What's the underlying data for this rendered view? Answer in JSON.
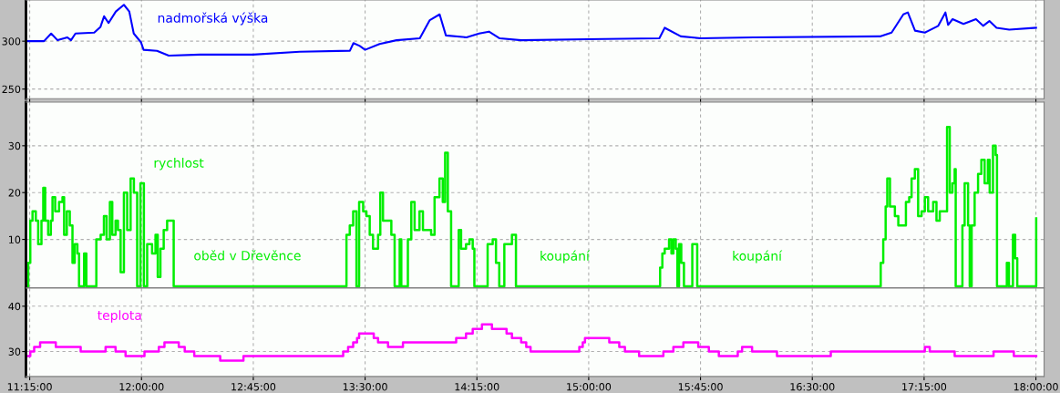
{
  "chart_data": [
    {
      "type": "line",
      "xlim": [
        11.225,
        18.055
      ],
      "ylim": [
        240,
        343
      ],
      "yticks": [
        250,
        300
      ],
      "grid": true,
      "tick_labels": "y",
      "xticks": [
        {
          "value": 11.25,
          "label": null
        },
        {
          "value": 12.0,
          "label": null
        },
        {
          "value": 12.75,
          "label": null
        },
        {
          "value": 13.5,
          "label": null
        },
        {
          "value": 14.25,
          "label": null
        },
        {
          "value": 15.0,
          "label": null
        },
        {
          "value": 15.75,
          "label": null
        },
        {
          "value": 16.5,
          "label": null
        },
        {
          "value": 17.25,
          "label": null
        },
        {
          "value": 18.0,
          "label": null
        }
      ],
      "series": [
        {
          "name": "nadmořská výška",
          "color": "#0000ff",
          "x": [
            11.226,
            11.346,
            11.394,
            11.437,
            11.503,
            11.527,
            11.557,
            11.683,
            11.725,
            11.749,
            11.779,
            11.828,
            11.882,
            11.918,
            11.948,
            11.996,
            12.014,
            12.104,
            12.183,
            12.393,
            12.748,
            13.061,
            13.398,
            13.422,
            13.464,
            13.5,
            13.597,
            13.711,
            13.867,
            13.934,
            14.0,
            14.042,
            14.18,
            14.265,
            14.331,
            14.403,
            14.547,
            14.992,
            15.474,
            15.51,
            15.618,
            15.751,
            16.106,
            16.954,
            17.032,
            17.111,
            17.141,
            17.189,
            17.255,
            17.345,
            17.393,
            17.411,
            17.441,
            17.514,
            17.598,
            17.646,
            17.688,
            17.736,
            17.821,
            18.001
          ],
          "values": [
            300,
            300,
            308,
            301,
            304,
            301,
            308,
            309,
            315,
            326,
            319,
            331,
            338,
            331,
            308,
            299,
            291,
            290,
            285,
            286,
            286,
            289,
            290,
            298,
            295,
            291,
            297,
            301,
            303,
            322,
            328,
            306,
            304,
            308,
            310,
            303,
            301,
            302,
            303,
            314,
            305,
            303,
            304,
            305,
            309,
            328,
            330,
            311,
            309,
            316,
            330,
            317,
            323,
            318,
            323,
            316,
            321,
            314,
            312,
            314
          ]
        }
      ]
    },
    {
      "type": "step",
      "xlim": [
        11.225,
        18.055
      ],
      "ylim": [
        -0.3,
        39.3
      ],
      "yticks": [
        10,
        20,
        30
      ],
      "grid": true,
      "tick_labels": "y",
      "xticks": [
        {
          "value": 11.25,
          "label": null
        },
        {
          "value": 12.0,
          "label": null
        },
        {
          "value": 12.75,
          "label": null
        },
        {
          "value": 13.5,
          "label": null
        },
        {
          "value": 14.25,
          "label": null
        },
        {
          "value": 15.0,
          "label": null
        },
        {
          "value": 15.75,
          "label": null
        },
        {
          "value": 16.5,
          "label": null
        },
        {
          "value": 17.25,
          "label": null
        },
        {
          "value": 18.0,
          "label": null
        }
      ],
      "annotations": [
        "oběd v Dřevěnce",
        "koupání",
        "koupání"
      ],
      "series": [
        {
          "name": "rychlost",
          "color": "#00ee00",
          "x": [
            11.225,
            11.24,
            11.254,
            11.269,
            11.291,
            11.307,
            11.329,
            11.341,
            11.354,
            11.374,
            11.392,
            11.403,
            11.421,
            11.447,
            11.47,
            11.481,
            11.499,
            11.519,
            11.537,
            11.552,
            11.57,
            11.581,
            11.615,
            11.63,
            11.697,
            11.726,
            11.748,
            11.766,
            11.788,
            11.804,
            11.826,
            11.842,
            11.86,
            11.882,
            11.904,
            11.927,
            11.949,
            11.971,
            11.993,
            12.016,
            12.038,
            12.071,
            12.094,
            12.109,
            12.127,
            12.149,
            12.172,
            12.198,
            12.216,
            13.375,
            13.397,
            13.42,
            13.442,
            13.46,
            13.487,
            13.509,
            13.531,
            13.553,
            13.587,
            13.602,
            13.62,
            13.654,
            13.676,
            13.698,
            13.732,
            13.743,
            13.787,
            13.81,
            13.832,
            13.865,
            13.888,
            13.943,
            13.966,
            13.999,
            14.021,
            14.037,
            14.055,
            14.077,
            14.128,
            14.144,
            14.177,
            14.2,
            14.222,
            14.233,
            14.322,
            14.356,
            14.378,
            14.4,
            14.434,
            14.467,
            14.485,
            14.512,
            15.472,
            15.479,
            15.494,
            15.51,
            15.539,
            15.555,
            15.568,
            15.584,
            15.595,
            15.606,
            15.621,
            15.639,
            15.695,
            15.713,
            15.728,
            16.95,
            16.959,
            16.976,
            16.992,
            17.003,
            17.021,
            17.054,
            17.077,
            17.099,
            17.128,
            17.15,
            17.166,
            17.188,
            17.21,
            17.233,
            17.255,
            17.277,
            17.311,
            17.333,
            17.355,
            17.389,
            17.404,
            17.422,
            17.44,
            17.455,
            17.462,
            17.507,
            17.522,
            17.545,
            17.556,
            17.569,
            17.589,
            17.612,
            17.634,
            17.656,
            17.678,
            17.69,
            17.712,
            17.73,
            17.739,
            17.805,
            17.819,
            17.846,
            17.861,
            17.875,
            17.991,
            18.002
          ],
          "values": [
            0,
            5,
            14,
            16,
            14,
            9,
            14,
            21,
            14,
            11,
            14,
            19,
            16,
            18,
            19,
            11,
            16,
            13,
            5,
            9,
            7,
            0,
            7,
            0,
            10,
            11,
            15,
            10,
            18,
            11,
            14,
            12,
            3,
            20,
            12,
            23,
            20,
            0,
            22,
            0,
            9,
            7,
            11,
            2,
            8,
            12,
            14,
            14,
            0,
            11,
            13,
            16,
            0,
            18,
            16,
            15,
            11,
            8,
            11,
            20,
            14,
            14,
            11,
            0,
            10,
            0,
            10,
            18,
            12,
            16,
            12,
            11,
            19,
            23,
            18,
            28.5,
            16,
            0,
            12,
            8,
            9,
            10,
            8,
            0,
            9,
            10,
            5,
            0,
            9,
            9,
            11,
            0,
            0,
            4,
            7,
            8,
            10,
            7,
            10,
            8,
            0,
            9,
            5,
            0,
            9,
            9,
            0,
            0,
            5,
            10,
            17,
            23,
            17,
            15,
            13,
            13,
            18,
            19,
            23,
            25,
            15,
            16,
            19,
            16,
            18,
            14,
            16,
            16,
            34,
            20,
            22,
            25,
            0,
            13,
            22,
            13,
            0,
            13,
            20,
            24,
            27,
            22,
            27,
            20,
            30,
            28,
            0,
            5,
            0,
            11,
            6,
            0,
            0,
            14.5
          ]
        }
      ]
    },
    {
      "type": "step",
      "xlim": [
        11.225,
        18.055
      ],
      "ylim": [
        24.5,
        44
      ],
      "yticks": [
        30,
        40
      ],
      "grid": true,
      "xticks": [
        {
          "value": 11.25,
          "label": "11:15:00"
        },
        {
          "value": 12.0,
          "label": "12:00:00"
        },
        {
          "value": 12.75,
          "label": "12:45:00"
        },
        {
          "value": 13.5,
          "label": "13:30:00"
        },
        {
          "value": 14.25,
          "label": "14:15:00"
        },
        {
          "value": 15.0,
          "label": "15:00:00"
        },
        {
          "value": 15.75,
          "label": "15:45:00"
        },
        {
          "value": 16.5,
          "label": "16:30:00"
        },
        {
          "value": 17.25,
          "label": "17:15:00"
        },
        {
          "value": 18.0,
          "label": "18:00:00"
        }
      ],
      "series": [
        {
          "name": "teplota",
          "color": "#ff00ff",
          "x": [
            11.225,
            11.254,
            11.28,
            11.32,
            11.425,
            11.592,
            11.759,
            11.826,
            11.893,
            12.02,
            12.116,
            12.154,
            12.25,
            12.29,
            12.354,
            12.528,
            12.684,
            13.353,
            13.386,
            13.42,
            13.446,
            13.46,
            13.558,
            13.587,
            13.654,
            13.754,
            14.111,
            14.177,
            14.222,
            14.284,
            14.351,
            14.449,
            14.485,
            14.547,
            14.581,
            14.61,
            14.937,
            14.96,
            14.975,
            15.138,
            15.205,
            15.243,
            15.338,
            15.501,
            15.568,
            15.635,
            15.735,
            15.806,
            15.873,
            16.0,
            16.029,
            16.096,
            16.263,
            16.624,
            17.255,
            17.288,
            17.455,
            17.716,
            17.852,
            18.002
          ],
          "values": [
            29,
            30,
            31,
            32,
            31,
            30,
            31,
            30,
            29,
            30,
            31,
            32,
            31,
            30,
            29,
            28,
            29,
            30,
            31,
            32,
            33,
            34,
            33,
            32,
            31,
            32,
            33,
            34,
            35,
            36,
            35,
            34,
            33,
            32,
            31,
            30,
            31,
            32,
            33,
            32,
            31,
            30,
            29,
            30,
            31,
            32,
            31,
            30,
            29,
            30,
            31,
            30,
            29,
            30,
            31,
            30,
            29,
            30,
            29,
            29
          ]
        }
      ]
    }
  ]
}
